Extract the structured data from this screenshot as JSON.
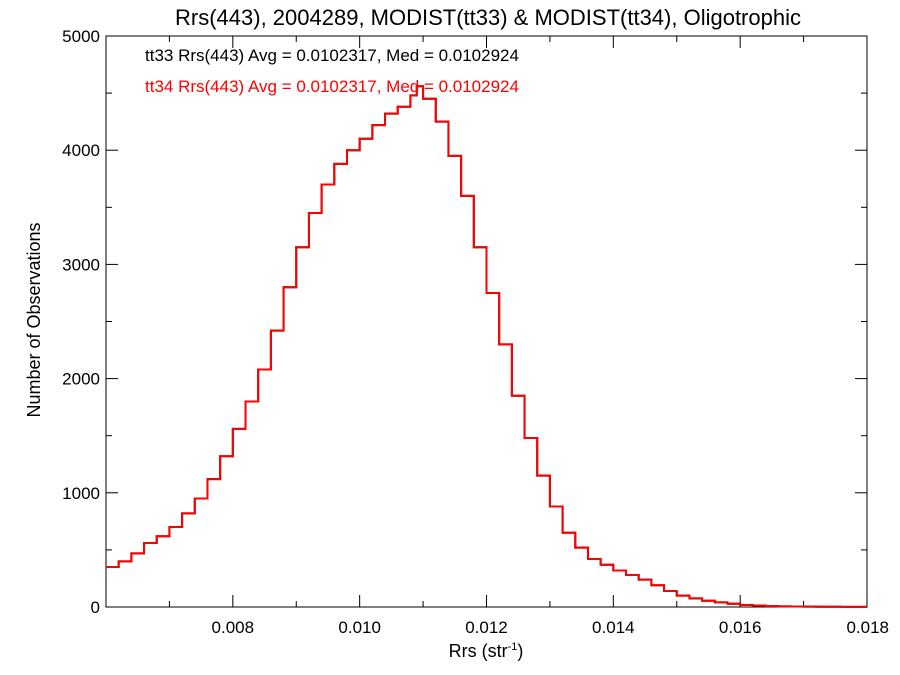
{
  "chart_data": {
    "type": "line",
    "step": true,
    "title": "Rrs(443), 2004289, MODIST(tt33) & MODIST(tt34), Oligotrophic",
    "xlabel": "Rrs (str",
    "xlabel_sup": "-1",
    "xlabel_end": ")",
    "ylabel": "Number of Observations",
    "xlim": [
      0.006,
      0.018
    ],
    "ylim": [
      0,
      5000
    ],
    "xticks": [
      0.008,
      0.01,
      0.012,
      0.014,
      0.016,
      0.018
    ],
    "xtick_labels": [
      "0.008",
      "0.010",
      "0.012",
      "0.014",
      "0.016",
      "0.018"
    ],
    "yticks": [
      0,
      1000,
      2000,
      3000,
      4000,
      5000
    ],
    "ytick_labels": [
      "0",
      "1000",
      "2000",
      "3000",
      "4000",
      "5000"
    ],
    "grid": false,
    "annotations": [
      {
        "text": "tt33 Rrs(443) Avg = 0.0102317, Med = 0.0102924",
        "color": "#000000"
      },
      {
        "text": "tt34 Rrs(443) Avg = 0.0102317, Med = 0.0102924",
        "color": "#ff0000"
      }
    ],
    "series": [
      {
        "color": "#000000",
        "x": [
          0.006,
          0.0062,
          0.0064,
          0.0066,
          0.0068,
          0.007,
          0.0072,
          0.0074,
          0.0076,
          0.0078,
          0.008,
          0.0082,
          0.0084,
          0.0086,
          0.0088,
          0.009,
          0.0092,
          0.0094,
          0.0096,
          0.0098,
          0.01,
          0.0102,
          0.0104,
          0.0106,
          0.0108,
          0.0109,
          0.011,
          0.0112,
          0.0114,
          0.0116,
          0.0118,
          0.012,
          0.0122,
          0.0124,
          0.0126,
          0.0128,
          0.013,
          0.0132,
          0.0134,
          0.0136,
          0.0138,
          0.014,
          0.0142,
          0.0144,
          0.0146,
          0.0148,
          0.015,
          0.0152,
          0.0154,
          0.0156,
          0.0158,
          0.016,
          0.0162,
          0.0164,
          0.0166,
          0.0168,
          0.017,
          0.0172,
          0.0174,
          0.0176,
          0.0178,
          0.018
        ],
        "y": [
          350,
          400,
          470,
          560,
          620,
          700,
          820,
          950,
          1120,
          1320,
          1560,
          1800,
          2080,
          2420,
          2800,
          3150,
          3450,
          3700,
          3880,
          4000,
          4100,
          4220,
          4320,
          4380,
          4480,
          4560,
          4450,
          4250,
          3950,
          3600,
          3150,
          2750,
          2300,
          1850,
          1480,
          1150,
          880,
          650,
          520,
          420,
          370,
          320,
          280,
          240,
          190,
          140,
          100,
          75,
          55,
          40,
          28,
          18,
          12,
          8,
          5,
          4,
          3,
          2,
          2,
          1,
          1,
          1
        ]
      },
      {
        "color": "#ff0000",
        "x": [
          0.006,
          0.0062,
          0.0064,
          0.0066,
          0.0068,
          0.007,
          0.0072,
          0.0074,
          0.0076,
          0.0078,
          0.008,
          0.0082,
          0.0084,
          0.0086,
          0.0088,
          0.009,
          0.0092,
          0.0094,
          0.0096,
          0.0098,
          0.01,
          0.0102,
          0.0104,
          0.0106,
          0.0108,
          0.0109,
          0.011,
          0.0112,
          0.0114,
          0.0116,
          0.0118,
          0.012,
          0.0122,
          0.0124,
          0.0126,
          0.0128,
          0.013,
          0.0132,
          0.0134,
          0.0136,
          0.0138,
          0.014,
          0.0142,
          0.0144,
          0.0146,
          0.0148,
          0.015,
          0.0152,
          0.0154,
          0.0156,
          0.0158,
          0.016,
          0.0162,
          0.0164,
          0.0166,
          0.0168,
          0.017,
          0.0172,
          0.0174,
          0.0176,
          0.0178,
          0.018
        ],
        "y": [
          350,
          400,
          470,
          560,
          620,
          700,
          820,
          950,
          1120,
          1320,
          1560,
          1800,
          2080,
          2420,
          2800,
          3150,
          3450,
          3700,
          3880,
          4000,
          4100,
          4220,
          4320,
          4380,
          4480,
          4560,
          4450,
          4250,
          3950,
          3600,
          3150,
          2750,
          2300,
          1850,
          1480,
          1150,
          880,
          650,
          520,
          420,
          370,
          320,
          280,
          240,
          190,
          140,
          100,
          75,
          55,
          40,
          28,
          18,
          12,
          8,
          5,
          4,
          3,
          2,
          2,
          1,
          1,
          1
        ]
      }
    ]
  }
}
